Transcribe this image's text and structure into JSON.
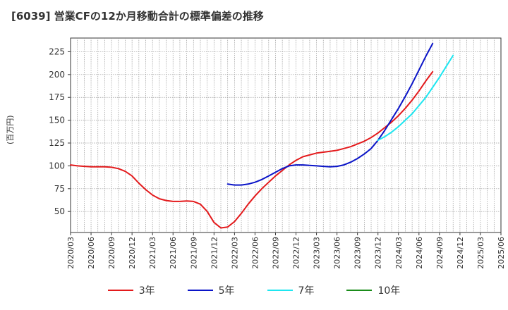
{
  "title": "[6039]  営業CFの12か月移動合計の標準偏差の推移",
  "chart_data": {
    "type": "line",
    "title": "[6039]  営業CFの12か月移動合計の標準偏差の推移",
    "ylabel": "(百万円)",
    "xlabel": "",
    "ylim": [
      27,
      240
    ],
    "yticks": [
      50,
      75,
      100,
      125,
      150,
      175,
      200,
      225
    ],
    "x_start": "2020-03",
    "x_end": "2025-06",
    "xticks": [
      "2020/03",
      "2020/06",
      "2020/09",
      "2020/12",
      "2021/03",
      "2021/06",
      "2021/09",
      "2021/12",
      "2022/03",
      "2022/06",
      "2022/09",
      "2022/12",
      "2023/03",
      "2023/06",
      "2023/09",
      "2023/12",
      "2024/03",
      "2024/06",
      "2024/09",
      "2024/12",
      "2025/03",
      "2025/06"
    ],
    "grid": true,
    "legend_position": "bottom",
    "series": [
      {
        "name": "3年",
        "color": "#e31a1c",
        "start": "2020-03",
        "values": [
          101,
          100,
          99.5,
          99,
          99,
          99,
          98.5,
          97,
          94,
          89,
          81,
          74,
          68,
          64,
          62,
          61,
          61,
          61.5,
          61,
          58,
          50,
          38,
          32,
          33,
          39,
          48,
          58,
          67,
          75,
          82,
          89,
          95,
          101,
          106,
          110,
          112,
          114,
          115,
          116,
          117,
          119,
          121,
          124,
          127,
          131,
          136,
          142,
          148,
          155,
          163,
          172,
          182,
          193,
          203
        ]
      },
      {
        "name": "5年",
        "color": "#0a14c8",
        "start": "2022-02",
        "values": [
          80,
          79,
          79,
          80,
          82,
          85,
          89,
          93,
          97,
          100,
          101,
          101,
          100.5,
          100,
          99.5,
          99,
          99.5,
          101,
          104,
          108,
          113,
          119,
          128,
          139,
          151,
          163,
          176,
          190,
          205,
          220,
          234
        ]
      },
      {
        "name": "7年",
        "color": "#1ee6f0",
        "start": "2023-12",
        "values": [
          128,
          132,
          137,
          143,
          150,
          157,
          166,
          175,
          186,
          197,
          209,
          221
        ]
      },
      {
        "name": "10年",
        "color": "#1a8c1a",
        "start": "2025-03",
        "values": []
      }
    ]
  }
}
